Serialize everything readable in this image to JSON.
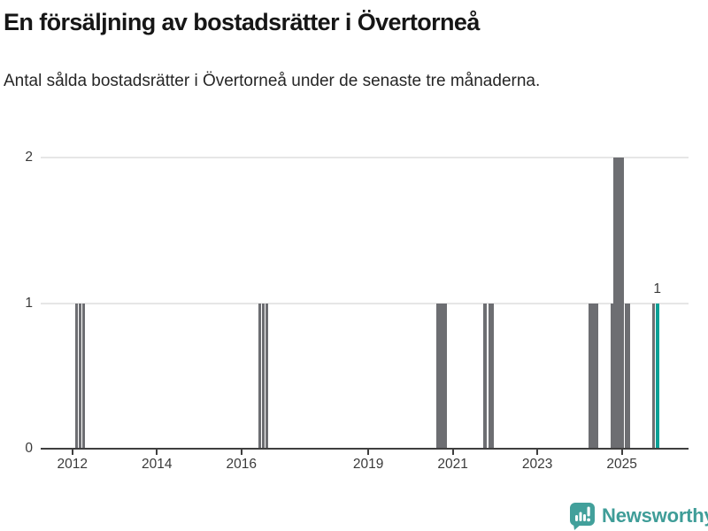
{
  "header": {
    "title": "En försäljning av bostadsrätter i Övertorneå",
    "subtitle": "Antal sålda bostadsrätter i Övertorneå under de senaste tre månaderna."
  },
  "footer": {
    "brand": "Newsworthy"
  },
  "colors": {
    "bar": "#6d6e72",
    "highlight": "#0aa096",
    "grid": "#e6e6e6",
    "axis": "#3f3f3f",
    "tick_text": "#3a3a3a",
    "logo": "#42a09b"
  },
  "chart_data": {
    "type": "bar",
    "title": "En försäljning av bostadsrätter i Övertorneå",
    "subtitle": "Antal sålda bostadsrätter i Övertorneå under de senaste tre månaderna.",
    "xlabel": "",
    "ylabel": "",
    "x_domain": [
      2011.25,
      2026.58
    ],
    "ylim": [
      0,
      2.11
    ],
    "yticks": [
      0,
      1,
      2
    ],
    "xticks": [
      2012,
      2014,
      2016,
      2019,
      2021,
      2023,
      2025
    ],
    "grid": "horizontal",
    "legend": "none",
    "annotation": {
      "text": "1",
      "x_year": 2025.84,
      "y": 1
    },
    "bars": [
      {
        "x_year": 2012.063,
        "w_months": 0.8,
        "value": 1,
        "highlight": false
      },
      {
        "x_year": 2012.147,
        "w_months": 0.8,
        "value": 1,
        "highlight": false
      },
      {
        "x_year": 2012.231,
        "w_months": 0.8,
        "value": 1,
        "highlight": false
      },
      {
        "x_year": 2016.397,
        "w_months": 0.8,
        "value": 1,
        "highlight": false
      },
      {
        "x_year": 2016.481,
        "w_months": 0.8,
        "value": 1,
        "highlight": false
      },
      {
        "x_year": 2016.565,
        "w_months": 0.8,
        "value": 1,
        "highlight": false
      },
      {
        "x_year": 2020.613,
        "w_months": 3.12,
        "value": 1,
        "highlight": false
      },
      {
        "x_year": 2021.727,
        "w_months": 1.0,
        "value": 1,
        "highlight": false
      },
      {
        "x_year": 2021.853,
        "w_months": 1.55,
        "value": 1,
        "highlight": false
      },
      {
        "x_year": 2024.209,
        "w_months": 2.94,
        "value": 1,
        "highlight": false
      },
      {
        "x_year": 2024.733,
        "w_months": 0.75,
        "value": 1,
        "highlight": false
      },
      {
        "x_year": 2024.796,
        "w_months": 3.19,
        "value": 2,
        "highlight": false
      },
      {
        "x_year": 2025.062,
        "w_months": 1.58,
        "value": 1,
        "highlight": false
      },
      {
        "x_year": 2025.717,
        "w_months": 0.75,
        "value": 1,
        "highlight": false
      },
      {
        "x_year": 2025.801,
        "w_months": 1.13,
        "value": 1,
        "highlight": true
      }
    ]
  }
}
